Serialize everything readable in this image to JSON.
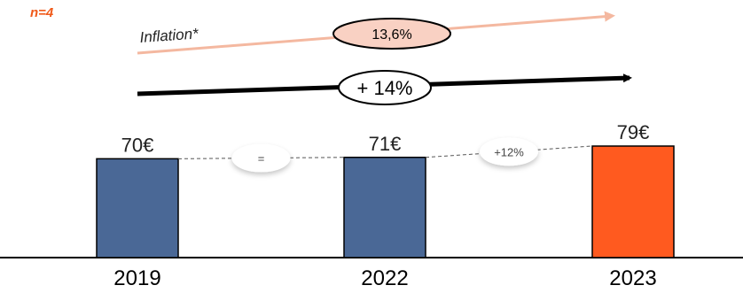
{
  "note": "n=4",
  "colors": {
    "bar_past": "#4a6896",
    "bar_current": "#ff5a1f",
    "inflation_arrow": "#f4b8a0",
    "inflation_pill": "#f9d1c3",
    "bubble_shadow": "#bbbbbb"
  },
  "chart_data": {
    "type": "bar",
    "categories": [
      "2019",
      "2022",
      "2023"
    ],
    "values": [
      70,
      71,
      79
    ],
    "value_labels": [
      "70€",
      "71€",
      "79€"
    ],
    "unit": "€",
    "ylim": [
      0,
      79
    ],
    "changes": [
      {
        "from": "2019",
        "to": "2022",
        "label": "="
      },
      {
        "from": "2022",
        "to": "2023",
        "label": "+12%"
      }
    ],
    "inflation": {
      "label": "Inflation*",
      "value": "13,6%"
    },
    "overall_change": "+ 14%",
    "grid": false
  }
}
